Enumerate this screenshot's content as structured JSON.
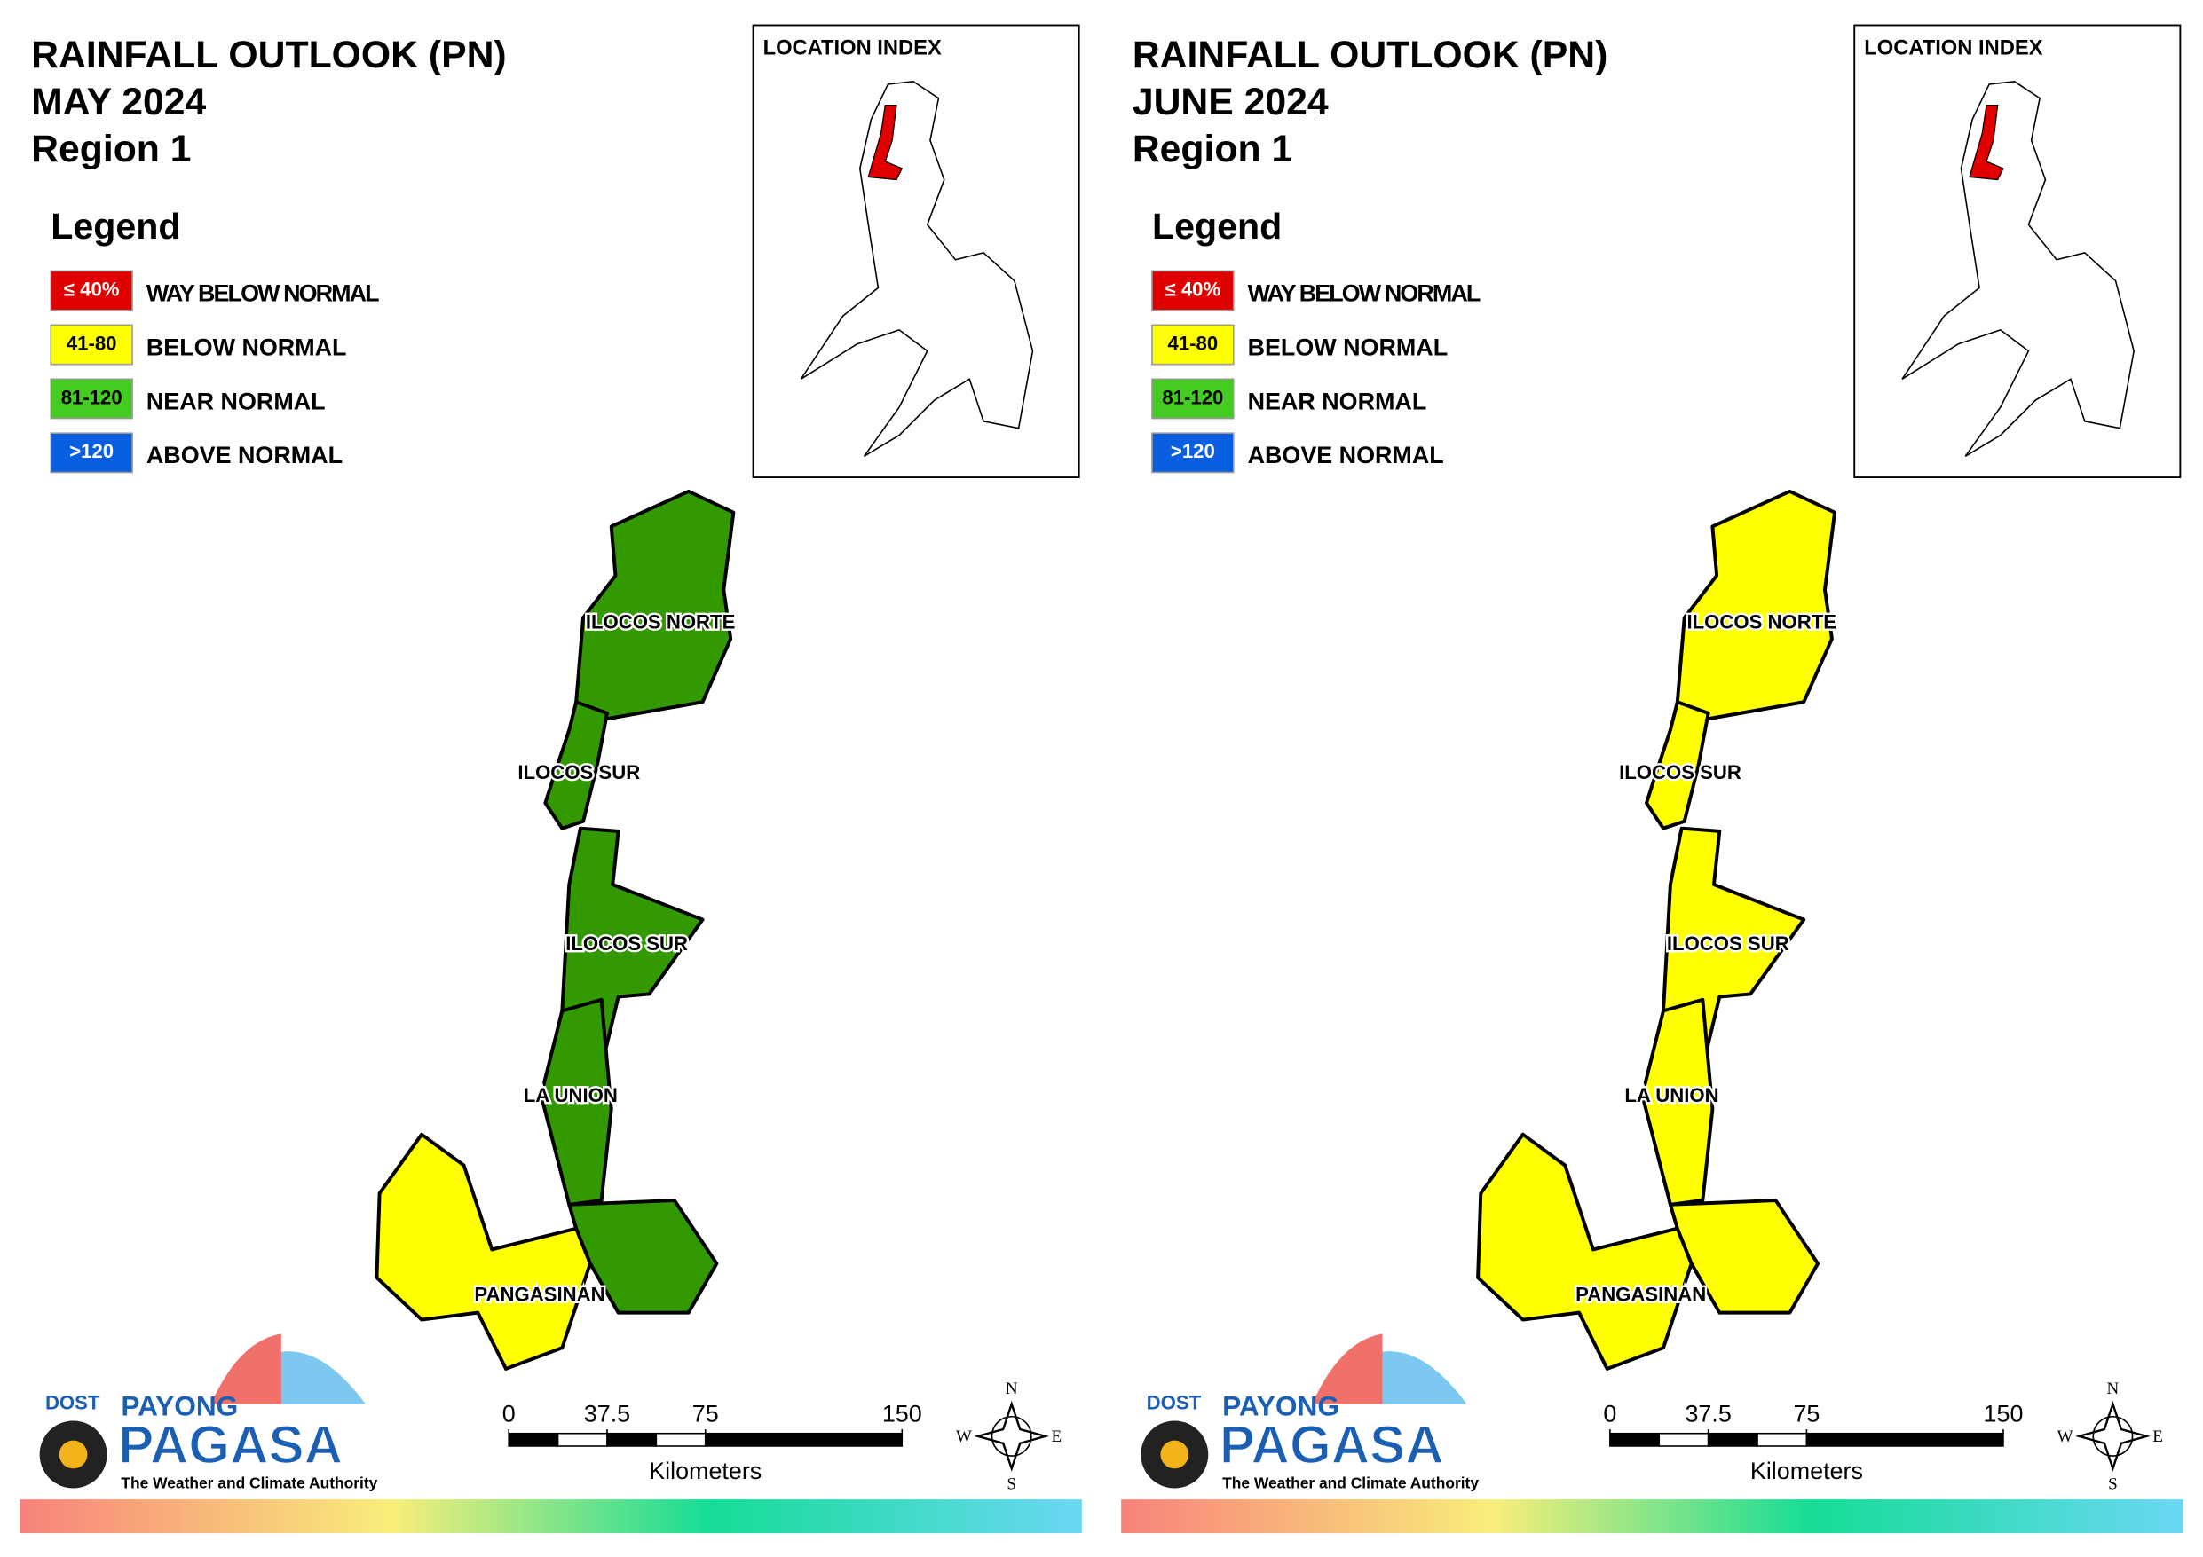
{
  "panels": [
    {
      "title": [
        "RAINFALL OUTLOOK (PN)",
        "MAY 2024",
        "Region 1"
      ],
      "legend": {
        "title": "Legend",
        "items": [
          {
            "range": "≤ 40%",
            "label": "WAY BELOW NORMAL",
            "color": "#e00000",
            "text_color": "#ffffff"
          },
          {
            "range": "41-80",
            "label": "BELOW NORMAL",
            "color": "#ffff00",
            "text_color": "#000000"
          },
          {
            "range": "81-120",
            "label": "NEAR NORMAL",
            "color": "#44cc22",
            "text_color": "#000000"
          },
          {
            "range": ">120",
            "label": "ABOVE NORMAL",
            "color": "#0a5ee0",
            "text_color": "#ffffff"
          }
        ]
      },
      "location_index": "LOCATION INDEX",
      "provinces": [
        {
          "label": "ILOCOS NORTE",
          "colors": [
            "#339900"
          ]
        },
        {
          "label": "ILOCOS SUR",
          "colors": [
            "#339900"
          ]
        },
        {
          "label": "ILOCOS SUR",
          "colors": [
            "#339900"
          ]
        },
        {
          "label": "LA UNION",
          "colors": [
            "#339900"
          ]
        },
        {
          "label": "PANGASINAN",
          "colors": [
            "#ffff00",
            "#339900"
          ]
        }
      ],
      "scale": {
        "ticks": [
          0,
          37.5,
          75,
          150
        ],
        "unit": "Kilometers"
      },
      "compass": [
        "N",
        "E",
        "S",
        "W"
      ],
      "logo": {
        "dost": "DOST",
        "payong": "PAYONG",
        "pagasa": "PAGASA",
        "tagline": "The Weather and Climate Authority"
      }
    },
    {
      "title": [
        "RAINFALL OUTLOOK (PN)",
        "JUNE 2024",
        "Region 1"
      ],
      "legend": {
        "title": "Legend",
        "items": [
          {
            "range": "≤ 40%",
            "label": "WAY BELOW NORMAL",
            "color": "#e00000",
            "text_color": "#ffffff"
          },
          {
            "range": "41-80",
            "label": "BELOW NORMAL",
            "color": "#ffff00",
            "text_color": "#000000"
          },
          {
            "range": "81-120",
            "label": "NEAR NORMAL",
            "color": "#44cc22",
            "text_color": "#000000"
          },
          {
            "range": ">120",
            "label": "ABOVE NORMAL",
            "color": "#0a5ee0",
            "text_color": "#ffffff"
          }
        ]
      },
      "location_index": "LOCATION INDEX",
      "provinces": [
        {
          "label": "ILOCOS NORTE",
          "colors": [
            "#ffff00"
          ]
        },
        {
          "label": "ILOCOS SUR",
          "colors": [
            "#ffff00"
          ]
        },
        {
          "label": "ILOCOS SUR",
          "colors": [
            "#ffff00"
          ]
        },
        {
          "label": "LA UNION",
          "colors": [
            "#ffff00"
          ]
        },
        {
          "label": "PANGASINAN",
          "colors": [
            "#ffff00",
            "#ffff00"
          ]
        }
      ],
      "scale": {
        "ticks": [
          0,
          37.5,
          75,
          150
        ],
        "unit": "Kilometers"
      },
      "compass": [
        "N",
        "E",
        "S",
        "W"
      ],
      "logo": {
        "dost": "DOST",
        "payong": "PAYONG",
        "pagasa": "PAGASA",
        "tagline": "The Weather and Climate Authority"
      }
    }
  ]
}
